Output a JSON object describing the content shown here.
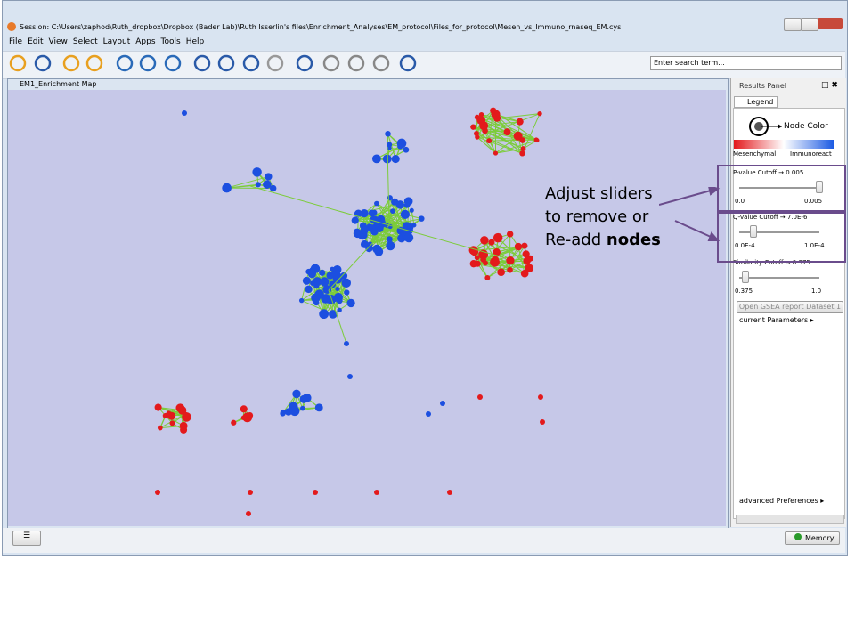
{
  "window": {
    "title": "Session: C:\\Users\\zaphod\\Ruth_dropbox\\Dropbox (Bader Lab)\\Ruth Isserlin's files\\Enrichment_Analyses\\EM_protocol\\Files_for_protocol\\Mesen_vs_Immuno_rnaseq_EM.cys"
  },
  "menu": [
    "File",
    "Edit",
    "View",
    "Select",
    "Layout",
    "Apps",
    "Tools",
    "Help"
  ],
  "search": {
    "placeholder": "Enter search term..."
  },
  "network": {
    "title": "EM1_Enrichment Map"
  },
  "results_panel": {
    "title": "Results Panel",
    "tab": "Legend",
    "node_color": "Node Color",
    "gradient": {
      "low": "Mesenchymal",
      "high": "Immunoreact"
    },
    "sliders": [
      {
        "label": "P-value Cutoff → 0.005",
        "min": "0.0",
        "max": "0.005"
      },
      {
        "label": "Q-value Cutoff → 7.0E-6",
        "min": "0.0E-4",
        "max": "1.0E-4"
      },
      {
        "label": "Similarity Cutoff → 0.375",
        "min": "0.375",
        "max": "1.0"
      }
    ],
    "report_button": "Open GSEA report Dataset 1",
    "current_parameters": "current Parameters",
    "advanced": "advanced Preferences"
  },
  "status": {
    "memory": "Memory"
  },
  "annotation": {
    "lines": [
      "Adjust sliders",
      "to remove or",
      "Re-add"
    ],
    "bold": "nodes"
  }
}
